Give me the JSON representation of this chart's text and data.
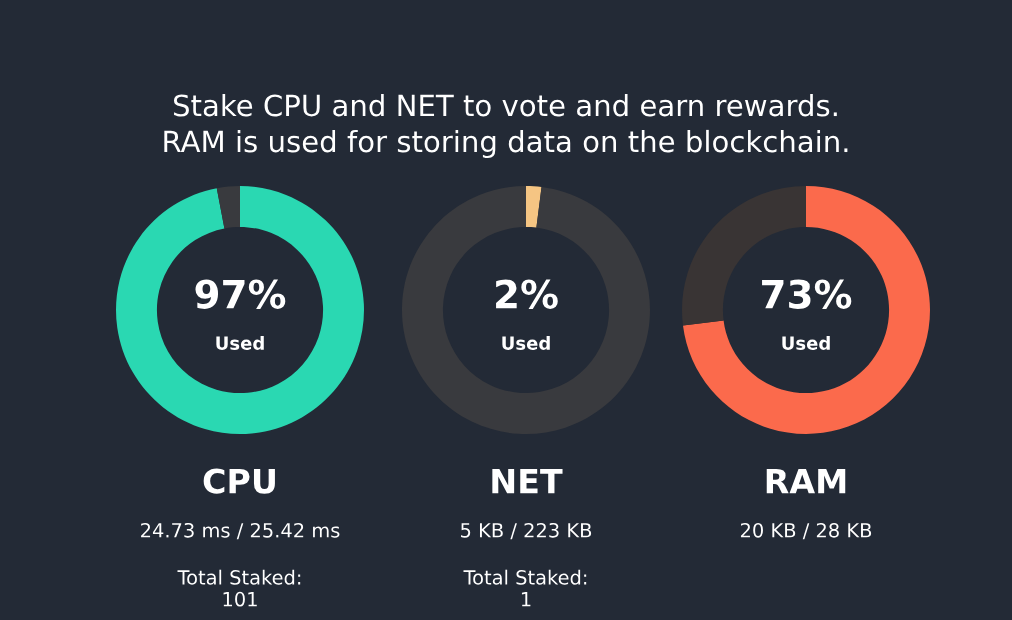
{
  "chart_data": [
    {
      "type": "other",
      "title": "Stake CPU and NET to vote and earn rewards.\nRAM is used for storing data on the blockchain."
    },
    {
      "type": "donut",
      "title": "CPU",
      "subtitle": "24.73 ms / 25.42 ms",
      "categories": [
        null,
        null
      ],
      "values": [
        97,
        3
      ],
      "colors": [
        "#2ad8b2",
        "#393a3e"
      ],
      "value_labels": [
        "97%",
        null
      ],
      "annotations": [
        "Used",
        "Total Staked:\n101"
      ]
    },
    {
      "type": "donut",
      "title": "NET",
      "subtitle": "5 KB / 223 KB",
      "categories": [
        null,
        null
      ],
      "values": [
        2,
        98
      ],
      "colors": [
        "#f5c583",
        "#393a3e"
      ],
      "value_labels": [
        "2%",
        null
      ],
      "annotations": [
        "Used",
        "Total Staked:\n1"
      ]
    },
    {
      "type": "donut",
      "title": "RAM",
      "subtitle": "20 KB / 28 KB",
      "categories": [
        null,
        null
      ],
      "values": [
        73,
        27
      ],
      "colors": [
        "#fb6a4c",
        "#393434"
      ],
      "value_labels": [
        "73%",
        null
      ],
      "annotations": [
        "Used"
      ]
    }
  ]
}
